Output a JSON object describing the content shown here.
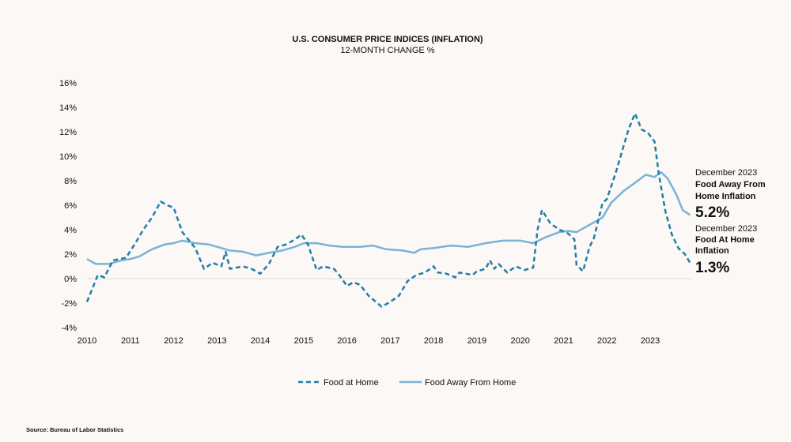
{
  "chart_data": {
    "type": "line",
    "title": "U.S. CONSUMER PRICE INDICES (INFLATION)",
    "subtitle": "12-MONTH CHANGE %",
    "xlim": [
      2010,
      2024
    ],
    "ylim": [
      -4,
      16
    ],
    "x_ticks": [
      "2010",
      "2011",
      "2012",
      "2013",
      "2014",
      "2015",
      "2016",
      "2017",
      "2018",
      "2019",
      "2020",
      "2021",
      "2022",
      "2023"
    ],
    "y_ticks": [
      "-4%",
      "-2%",
      "0%",
      "2%",
      "4%",
      "6%",
      "8%",
      "10%",
      "12%",
      "14%",
      "16%"
    ],
    "grid": "zero line only",
    "legend_position": "bottom",
    "series": [
      {
        "name": "Food at Home",
        "color": "#1f7fa8",
        "style": "dashed",
        "points": [
          [
            2010.0,
            -1.9
          ],
          [
            2010.25,
            0.3
          ],
          [
            2010.4,
            0.1
          ],
          [
            2010.6,
            1.5
          ],
          [
            2010.9,
            1.7
          ],
          [
            2011.1,
            2.8
          ],
          [
            2011.3,
            4.0
          ],
          [
            2011.5,
            5.0
          ],
          [
            2011.7,
            6.3
          ],
          [
            2011.85,
            6.0
          ],
          [
            2012.0,
            5.8
          ],
          [
            2012.2,
            3.8
          ],
          [
            2012.5,
            2.5
          ],
          [
            2012.7,
            0.8
          ],
          [
            2012.9,
            1.3
          ],
          [
            2013.1,
            1.0
          ],
          [
            2013.2,
            2.2
          ],
          [
            2013.3,
            0.8
          ],
          [
            2013.6,
            1.0
          ],
          [
            2013.8,
            0.8
          ],
          [
            2014.0,
            0.4
          ],
          [
            2014.2,
            1.2
          ],
          [
            2014.4,
            2.6
          ],
          [
            2014.6,
            2.8
          ],
          [
            2014.8,
            3.2
          ],
          [
            2014.95,
            3.6
          ],
          [
            2015.1,
            2.8
          ],
          [
            2015.3,
            0.7
          ],
          [
            2015.45,
            1.0
          ],
          [
            2015.7,
            0.8
          ],
          [
            2015.8,
            0.4
          ],
          [
            2016.0,
            -0.6
          ],
          [
            2016.15,
            -0.3
          ],
          [
            2016.3,
            -0.5
          ],
          [
            2016.5,
            -1.4
          ],
          [
            2016.8,
            -2.3
          ],
          [
            2017.0,
            -1.9
          ],
          [
            2017.2,
            -1.4
          ],
          [
            2017.4,
            -0.2
          ],
          [
            2017.6,
            0.3
          ],
          [
            2017.8,
            0.5
          ],
          [
            2018.0,
            1.0
          ],
          [
            2018.1,
            0.5
          ],
          [
            2018.3,
            0.4
          ],
          [
            2018.5,
            0.1
          ],
          [
            2018.6,
            0.5
          ],
          [
            2018.9,
            0.3
          ],
          [
            2019.0,
            0.6
          ],
          [
            2019.2,
            0.8
          ],
          [
            2019.3,
            1.5
          ],
          [
            2019.4,
            0.8
          ],
          [
            2019.5,
            1.2
          ],
          [
            2019.7,
            0.5
          ],
          [
            2019.9,
            1.0
          ],
          [
            2020.1,
            0.7
          ],
          [
            2020.3,
            0.9
          ],
          [
            2020.4,
            4.0
          ],
          [
            2020.5,
            5.6
          ],
          [
            2020.7,
            4.5
          ],
          [
            2020.9,
            4.0
          ],
          [
            2021.1,
            3.7
          ],
          [
            2021.25,
            3.2
          ],
          [
            2021.3,
            1.1
          ],
          [
            2021.45,
            0.6
          ],
          [
            2021.6,
            2.6
          ],
          [
            2021.7,
            3.3
          ],
          [
            2021.9,
            6.2
          ],
          [
            2022.0,
            6.5
          ],
          [
            2022.2,
            8.6
          ],
          [
            2022.4,
            11.0
          ],
          [
            2022.5,
            12.2
          ],
          [
            2022.65,
            13.5
          ],
          [
            2022.8,
            12.2
          ],
          [
            2022.95,
            11.9
          ],
          [
            2023.1,
            11.2
          ],
          [
            2023.2,
            8.5
          ],
          [
            2023.35,
            5.5
          ],
          [
            2023.5,
            3.6
          ],
          [
            2023.65,
            2.5
          ],
          [
            2023.8,
            2.0
          ],
          [
            2023.92,
            1.3
          ]
        ]
      },
      {
        "name": "Food Away From Home",
        "color": "#7ab3d6",
        "style": "solid",
        "points": [
          [
            2010.0,
            1.6
          ],
          [
            2010.2,
            1.2
          ],
          [
            2010.5,
            1.2
          ],
          [
            2010.8,
            1.5
          ],
          [
            2011.0,
            1.6
          ],
          [
            2011.2,
            1.8
          ],
          [
            2011.5,
            2.4
          ],
          [
            2011.8,
            2.8
          ],
          [
            2012.0,
            2.9
          ],
          [
            2012.2,
            3.1
          ],
          [
            2012.5,
            2.9
          ],
          [
            2012.8,
            2.8
          ],
          [
            2013.0,
            2.6
          ],
          [
            2013.3,
            2.3
          ],
          [
            2013.6,
            2.2
          ],
          [
            2013.9,
            1.9
          ],
          [
            2014.2,
            2.1
          ],
          [
            2014.5,
            2.3
          ],
          [
            2014.8,
            2.6
          ],
          [
            2015.0,
            2.9
          ],
          [
            2015.3,
            2.9
          ],
          [
            2015.6,
            2.7
          ],
          [
            2015.9,
            2.6
          ],
          [
            2016.3,
            2.6
          ],
          [
            2016.6,
            2.7
          ],
          [
            2016.9,
            2.4
          ],
          [
            2017.3,
            2.3
          ],
          [
            2017.55,
            2.1
          ],
          [
            2017.7,
            2.4
          ],
          [
            2018.0,
            2.5
          ],
          [
            2018.4,
            2.7
          ],
          [
            2018.8,
            2.6
          ],
          [
            2019.2,
            2.9
          ],
          [
            2019.6,
            3.1
          ],
          [
            2020.0,
            3.1
          ],
          [
            2020.3,
            2.9
          ],
          [
            2020.6,
            3.4
          ],
          [
            2020.9,
            3.8
          ],
          [
            2021.1,
            3.9
          ],
          [
            2021.3,
            3.8
          ],
          [
            2021.6,
            4.4
          ],
          [
            2021.9,
            5.0
          ],
          [
            2022.1,
            6.2
          ],
          [
            2022.4,
            7.2
          ],
          [
            2022.6,
            7.7
          ],
          [
            2022.9,
            8.5
          ],
          [
            2023.1,
            8.3
          ],
          [
            2023.25,
            8.7
          ],
          [
            2023.4,
            8.2
          ],
          [
            2023.6,
            6.9
          ],
          [
            2023.75,
            5.6
          ],
          [
            2023.92,
            5.2
          ]
        ]
      }
    ],
    "annotations": [
      {
        "date": "December 2023",
        "label_line1": "Food Away From",
        "label_line2": "Home Inflation",
        "value": "5.2%"
      },
      {
        "date": "December 2023",
        "label_line1": "Food At Home",
        "label_line2": "Inflation",
        "value": "1.3%"
      }
    ]
  },
  "source": "Source: Bureau of Labor Statistics"
}
